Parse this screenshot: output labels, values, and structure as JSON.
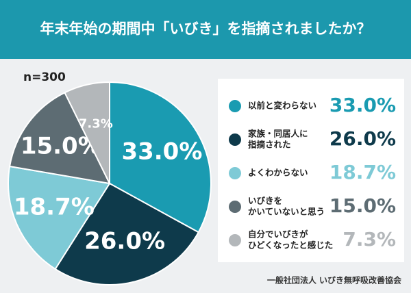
{
  "chart_data": {
    "type": "pie",
    "title": "年末年始の期間中「いびき」を指摘されましたか？",
    "note": "n=300",
    "categories": [
      [
        "以前と変わらない"
      ],
      [
        "家族・同居人に",
        "指摘された"
      ],
      [
        "よくわからない"
      ],
      [
        "いびきを",
        "かいていないと思う"
      ],
      [
        "自分でいびきが",
        "ひどくなったと感じた"
      ]
    ],
    "values": [
      33.0,
      26.0,
      18.7,
      15.0,
      7.3
    ],
    "value_labels": [
      "33.0%",
      "26.0%",
      "18.7%",
      "15.0%",
      "7.3%"
    ],
    "colors": [
      "#1a9bb1",
      "#0e3a4b",
      "#7ecad6",
      "#5d6c73",
      "#b3b7ba"
    ],
    "source": "一般社団法人 いびき無呼吸改善協会"
  }
}
